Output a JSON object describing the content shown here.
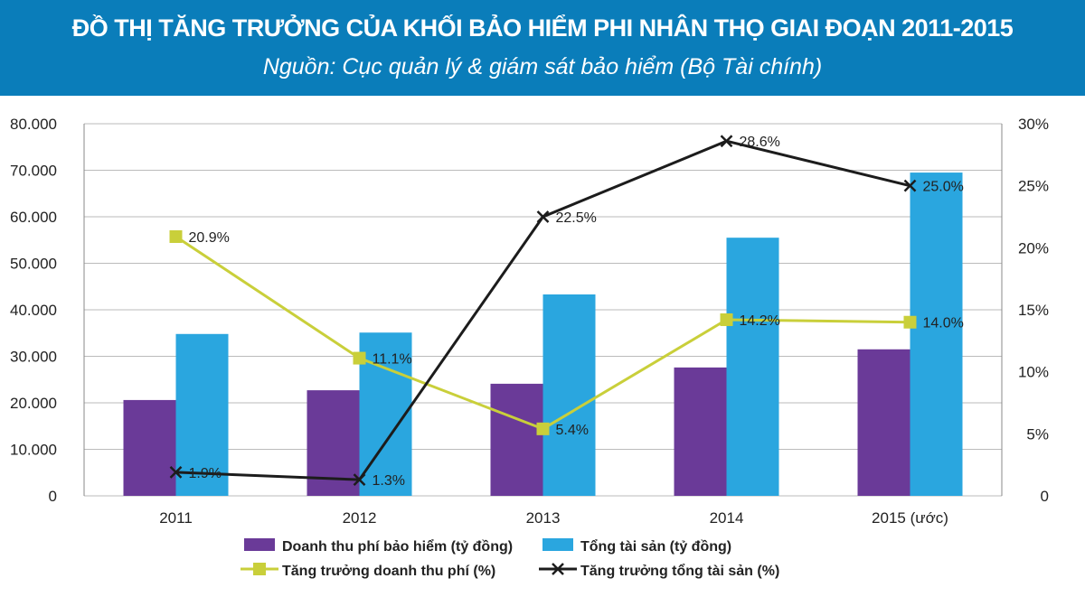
{
  "header": {
    "title": "ĐỒ THỊ TĂNG TRƯỞNG CỦA KHỐI BẢO HIỂM PHI NHÂN THỌ GIAI ĐOẠN 2011-2015",
    "subtitle": "Nguồn: Cục quản lý & giám sát bảo hiểm (Bộ Tài chính)"
  },
  "chart_data": {
    "type": "bar",
    "title": "ĐỒ THỊ TĂNG TRƯỞNG CỦA KHỐI BẢO HIỂM PHI NHÂN THỌ GIAI ĐOẠN 2011-2015",
    "categories": [
      "2011",
      "2012",
      "2013",
      "2014",
      "2015 (ước)"
    ],
    "ylim": [
      0,
      80000
    ],
    "y2lim": [
      0,
      30
    ],
    "yticks": [
      "0",
      "10.000",
      "20.000",
      "30.000",
      "40.000",
      "50.000",
      "60.000",
      "70.000",
      "80.000"
    ],
    "y2ticks": [
      "0",
      "5%",
      "10%",
      "15%",
      "20%",
      "25%",
      "30%"
    ],
    "grid": true,
    "legend": "bottom",
    "series": [
      {
        "name": "Doanh thu phí bảo hiểm (tỷ đồng)",
        "kind": "bar",
        "axis": "left",
        "color": "#6a3a98",
        "values": [
          20600,
          22700,
          24100,
          27600,
          31500
        ]
      },
      {
        "name": "Tổng tài sản (tỷ đồng)",
        "kind": "bar",
        "axis": "left",
        "color": "#2aa6df",
        "values": [
          34800,
          35100,
          43300,
          55500,
          69500
        ]
      },
      {
        "name": "Tăng trưởng doanh thu phí (%)",
        "kind": "line",
        "axis": "right",
        "color": "#c9cf3a",
        "marker": "square",
        "values": [
          20.9,
          11.1,
          5.4,
          14.2,
          14.0
        ],
        "labels": [
          "20.9%",
          "11.1%",
          "5.4%",
          "14.2%",
          "14.0%"
        ]
      },
      {
        "name": "Tăng trưởng tổng tài sản (%)",
        "kind": "line",
        "axis": "right",
        "color": "#1c1c1c",
        "marker": "x",
        "values": [
          1.9,
          1.3,
          22.5,
          28.6,
          25.0
        ],
        "labels": [
          "1.9%",
          "1.3%",
          "22.5%",
          "28.6%",
          "25.0%"
        ]
      }
    ]
  }
}
